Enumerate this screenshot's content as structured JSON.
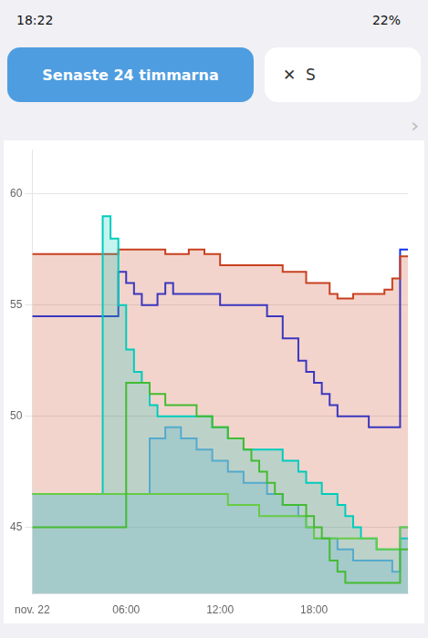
{
  "chart_data": {
    "type": "line",
    "title": "Senaste 24 timmarna",
    "annotations": [
      "18:22",
      "22%",
      "✕  S",
      "›"
    ],
    "line_style": "step",
    "grid": "y",
    "x": [
      0,
      0.5,
      1,
      1.5,
      2,
      2.5,
      3,
      3.5,
      4,
      4.5,
      5,
      5.5,
      6,
      6.5,
      7,
      7.5,
      8,
      8.5,
      9,
      9.5,
      10,
      10.5,
      11,
      11.5,
      12,
      12.5,
      13,
      13.5,
      14,
      14.5,
      15,
      15.5,
      16,
      16.5,
      17,
      17.5,
      18,
      18.5,
      19,
      19.5,
      20,
      20.5,
      21,
      21.5,
      22,
      22.5,
      23,
      23.5,
      24
    ],
    "xlim": [
      0,
      24
    ],
    "xticks": [
      {
        "value": 0,
        "label": "nov. 22"
      },
      {
        "value": 6,
        "label": "06:00"
      },
      {
        "value": 12,
        "label": "12:00"
      },
      {
        "value": 18,
        "label": "18:00"
      }
    ],
    "ylim": [
      42,
      62
    ],
    "yticks": [
      45,
      50,
      55,
      60
    ],
    "series": [
      {
        "type": "line",
        "color": "#44bb33",
        "values": [
          45.0,
          45.0,
          45.0,
          45.0,
          45.0,
          45.0,
          45.0,
          45.0,
          45.0,
          45.0,
          45.0,
          45.0,
          45.0,
          51.5,
          51.5,
          51.5,
          51.0,
          51.0,
          50.5,
          50.5,
          50.5,
          50.5,
          50.0,
          50.0,
          49.5,
          49.5,
          49.0,
          49.0,
          48.5,
          48.0,
          47.5,
          47.0,
          46.5,
          46.0,
          46.0,
          46.0,
          45.5,
          45.0,
          44.5,
          43.5,
          43.0,
          42.5,
          42.5,
          42.5,
          42.5,
          42.5,
          42.5,
          42.5,
          44.0
        ]
      },
      {
        "type": "line",
        "color": "#66cc44",
        "values": [
          46.5,
          46.5,
          46.5,
          46.5,
          46.5,
          46.5,
          46.5,
          46.5,
          46.5,
          46.5,
          46.5,
          46.5,
          46.5,
          46.5,
          46.5,
          46.5,
          46.5,
          46.5,
          46.5,
          46.5,
          46.5,
          46.5,
          46.5,
          46.5,
          46.5,
          46.5,
          46.0,
          46.0,
          46.0,
          46.0,
          45.5,
          45.5,
          45.5,
          45.5,
          45.5,
          45.5,
          45.0,
          44.5,
          44.5,
          44.5,
          44.5,
          44.5,
          44.5,
          44.5,
          44.5,
          44.0,
          44.0,
          44.0,
          45.0
        ]
      },
      {
        "type": "area",
        "color": "#55aacc",
        "values": [
          46.5,
          46.5,
          46.5,
          46.5,
          46.5,
          46.5,
          46.5,
          46.5,
          46.5,
          46.5,
          46.5,
          46.5,
          46.5,
          46.5,
          46.5,
          46.5,
          49.0,
          49.0,
          49.5,
          49.5,
          49.0,
          49.0,
          48.5,
          48.5,
          48.0,
          48.0,
          47.5,
          47.5,
          47.0,
          47.0,
          47.0,
          46.5,
          46.5,
          46.0,
          46.0,
          45.5,
          45.0,
          44.5,
          44.5,
          44.5,
          44.0,
          44.0,
          43.5,
          43.5,
          43.5,
          43.5,
          43.5,
          43.0,
          45.0
        ]
      },
      {
        "type": "area",
        "color": "#00ccbb",
        "values": [
          46.5,
          46.5,
          46.5,
          46.5,
          46.5,
          46.5,
          46.5,
          46.5,
          46.5,
          46.5,
          59.0,
          58.0,
          55.0,
          53.0,
          52.0,
          51.5,
          50.5,
          50.0,
          50.0,
          50.0,
          50.0,
          50.0,
          50.0,
          50.0,
          49.5,
          49.5,
          49.0,
          49.0,
          48.5,
          48.5,
          48.5,
          48.5,
          48.5,
          48.0,
          48.0,
          47.5,
          47.0,
          47.0,
          46.5,
          46.5,
          46.0,
          45.5,
          45.0,
          44.5,
          44.5,
          44.0,
          44.0,
          44.0,
          44.5
        ]
      },
      {
        "type": "area",
        "color": "#c94020",
        "values": [
          57.3,
          57.3,
          57.3,
          57.3,
          57.3,
          57.3,
          57.3,
          57.3,
          57.3,
          57.3,
          57.3,
          57.3,
          57.5,
          57.5,
          57.5,
          57.5,
          57.5,
          57.5,
          57.3,
          57.3,
          57.3,
          57.5,
          57.5,
          57.3,
          57.3,
          56.8,
          56.8,
          56.8,
          56.8,
          56.8,
          56.8,
          56.8,
          56.8,
          56.5,
          56.5,
          56.5,
          56.0,
          56.0,
          56.0,
          55.5,
          55.3,
          55.3,
          55.5,
          55.5,
          55.5,
          55.5,
          55.7,
          56.2,
          57.2
        ]
      },
      {
        "type": "line",
        "color": "#1133ee",
        "values": [
          54.5,
          54.5,
          54.5,
          54.5,
          54.5,
          54.5,
          54.5,
          54.5,
          54.5,
          54.5,
          54.5,
          54.5,
          56.5,
          56.0,
          55.5,
          55.0,
          55.0,
          55.5,
          56.0,
          55.5,
          55.5,
          55.5,
          55.5,
          55.5,
          55.5,
          55.0,
          55.0,
          55.0,
          55.0,
          55.0,
          55.0,
          54.5,
          54.5,
          53.5,
          53.5,
          52.5,
          52.0,
          51.5,
          51.0,
          50.5,
          50.0,
          50.0,
          50.0,
          50.0,
          49.5,
          49.5,
          49.5,
          49.5,
          57.5
        ]
      }
    ]
  }
}
